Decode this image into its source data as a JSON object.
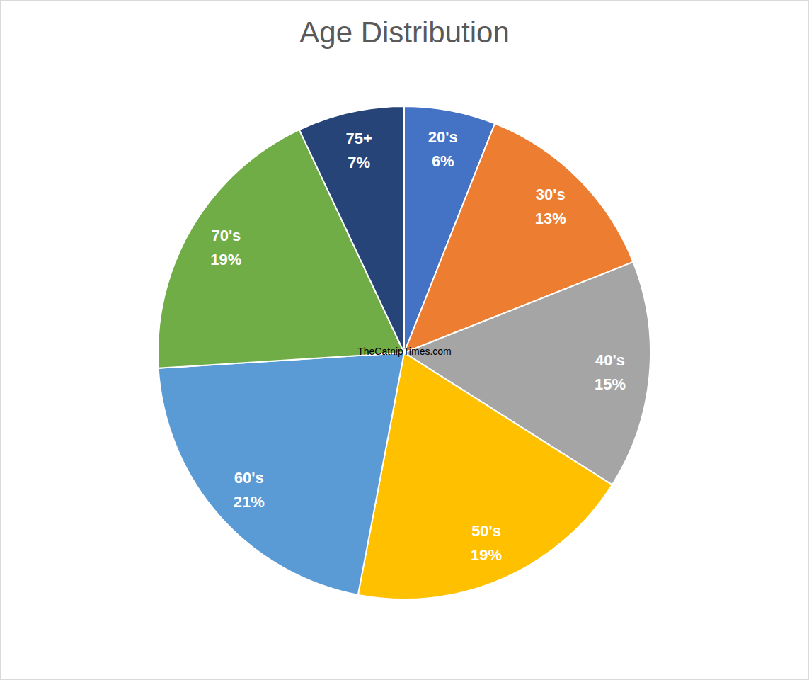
{
  "chart_data": {
    "type": "pie",
    "title": "Age Distribution",
    "categories": [
      "20's",
      "30's",
      "40's",
      "50's",
      "60's",
      "70's",
      "75+"
    ],
    "values": [
      6,
      13,
      15,
      19,
      21,
      19,
      7
    ],
    "value_labels": [
      "6%",
      "13%",
      "15%",
      "19%",
      "21%",
      "19%",
      "7%"
    ],
    "colors": [
      "#4472c4",
      "#ed7d31",
      "#a5a5a5",
      "#ffc000",
      "#5b9bd5",
      "#70ad47",
      "#264478"
    ],
    "data_labels": true,
    "annotations": [
      "TheCatnipTimes.com"
    ]
  }
}
